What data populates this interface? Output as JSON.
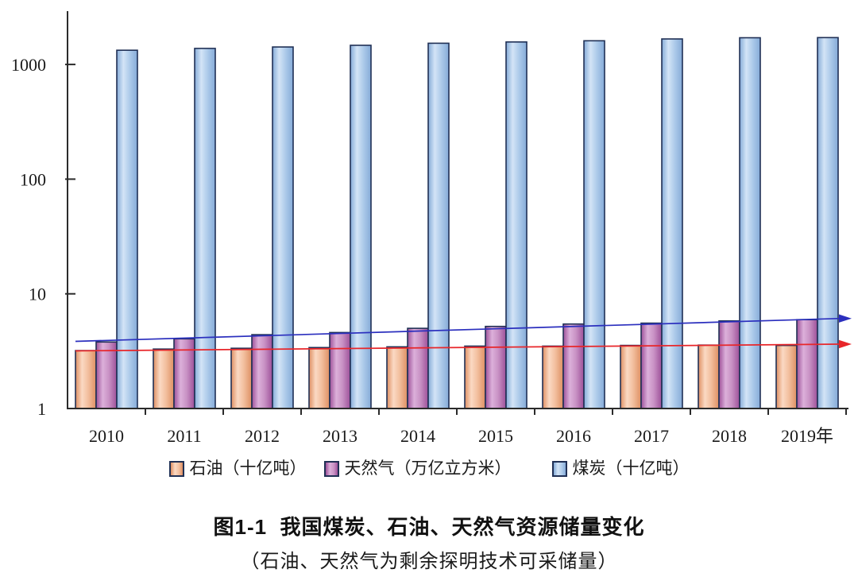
{
  "chart_data": {
    "type": "bar",
    "subtype": "grouped bars on logarithmic y-axis with linear trend arrows",
    "title": "图1-1  我国煤炭、石油、天然气资源储量变化",
    "subtitle": "（石油、天然气为剩余探明技术可采储量）",
    "categories": [
      "2010",
      "2011",
      "2012",
      "2013",
      "2014",
      "2015",
      "2016",
      "2017",
      "2018",
      "2019年"
    ],
    "series": [
      {
        "id": "oil",
        "name": "石油（十亿吨）",
        "values": [
          3.2,
          3.3,
          3.35,
          3.4,
          3.45,
          3.5,
          3.5,
          3.55,
          3.57,
          3.55
        ],
        "colors": {
          "edge": "#DE8F62",
          "light": "#FBD9C3",
          "mid": "#F2BE9D",
          "stroke": "#203055"
        }
      },
      {
        "id": "gas",
        "name": "天然气（万亿立方米）",
        "values": [
          3.8,
          4.05,
          4.4,
          4.6,
          5.0,
          5.2,
          5.45,
          5.55,
          5.8,
          5.95
        ],
        "colors": {
          "edge": "#9D5099",
          "light": "#DCB0DA",
          "mid": "#C891C4",
          "stroke": "#203055"
        }
      },
      {
        "id": "coal",
        "name": "煤炭（十亿吨）",
        "values": [
          1330,
          1380,
          1420,
          1470,
          1530,
          1570,
          1610,
          1670,
          1710,
          1715
        ],
        "colors": {
          "edge": "#85ABD8",
          "light": "#D3E4F6",
          "mid": "#AECBEA",
          "stroke": "#203055"
        }
      }
    ],
    "trend_lines": [
      {
        "id": "oil-trend",
        "name": "石油线性趋势箭头",
        "color": "#E8262A",
        "start_value": 3.18,
        "end_value": 3.64
      },
      {
        "id": "gas-trend",
        "name": "天然气线性趋势箭头",
        "color": "#2B2FBE",
        "start_value": 3.85,
        "end_value": 6.1
      }
    ],
    "y_axis": {
      "scale": "log",
      "ticks": [
        1,
        10,
        100,
        1000
      ],
      "ylim": [
        1,
        3000
      ]
    },
    "grid": false,
    "legend_position": "bottom-center",
    "axis_color": "#2b2b2b",
    "text_color": "#1a1a1a"
  }
}
